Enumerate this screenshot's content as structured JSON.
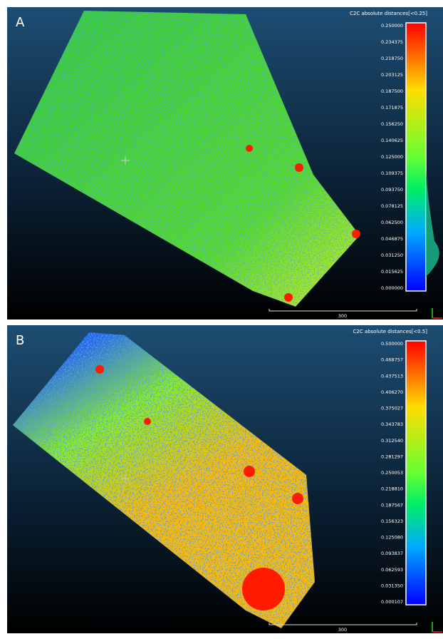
{
  "panels": [
    {
      "label": "A",
      "scale_title": "C2C absolute distances[<0.25]",
      "scale_ticks": [
        "0.250000",
        "0.234375",
        "0.218750",
        "0.203125",
        "0.187500",
        "0.171875",
        "0.156250",
        "0.140625",
        "0.125000",
        "0.109375",
        "0.093750",
        "0.078125",
        "0.062500",
        "0.046875",
        "0.031250",
        "0.015625",
        "0.000000"
      ],
      "scale_bar_label": "300"
    },
    {
      "label": "B",
      "scale_title": "C2C absolute distances[<0.5]",
      "scale_ticks": [
        "0.500000",
        "0.468757",
        "0.437513",
        "0.406270",
        "0.375027",
        "0.343783",
        "0.312540",
        "0.281297",
        "0.250053",
        "0.218810",
        "0.187567",
        "0.156323",
        "0.125080",
        "0.093837",
        "0.062593",
        "0.031350",
        "0.000107"
      ],
      "scale_bar_label": "300"
    }
  ]
}
